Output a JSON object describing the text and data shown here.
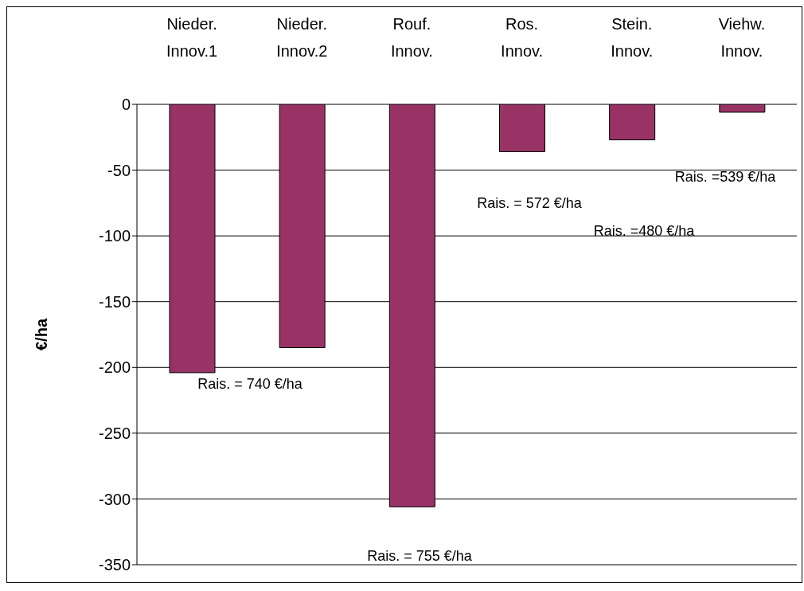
{
  "chart_data": {
    "type": "bar",
    "ylabel": "€/ha",
    "categories": [
      "Nieder. Innov.1",
      "Nieder. Innov.2",
      "Rouf. Innov.",
      "Ros. Innov.",
      "Stein. Innov.",
      "Viehw. Innov."
    ],
    "values": [
      -204,
      -185,
      -306,
      -36,
      -27,
      -6
    ],
    "color": "#993366",
    "ylim": [
      -350,
      0
    ],
    "yticks": [
      -350,
      -300,
      -250,
      -200,
      -150,
      -100,
      -50,
      0
    ],
    "grid": "y",
    "annotations": [
      "Rais. = 740 €/ha",
      "Rais. = 755 €/ha",
      "Rais. = 572 €/ha",
      "Rais. =480 €/ha",
      "Rais. =539 €/ha"
    ]
  }
}
